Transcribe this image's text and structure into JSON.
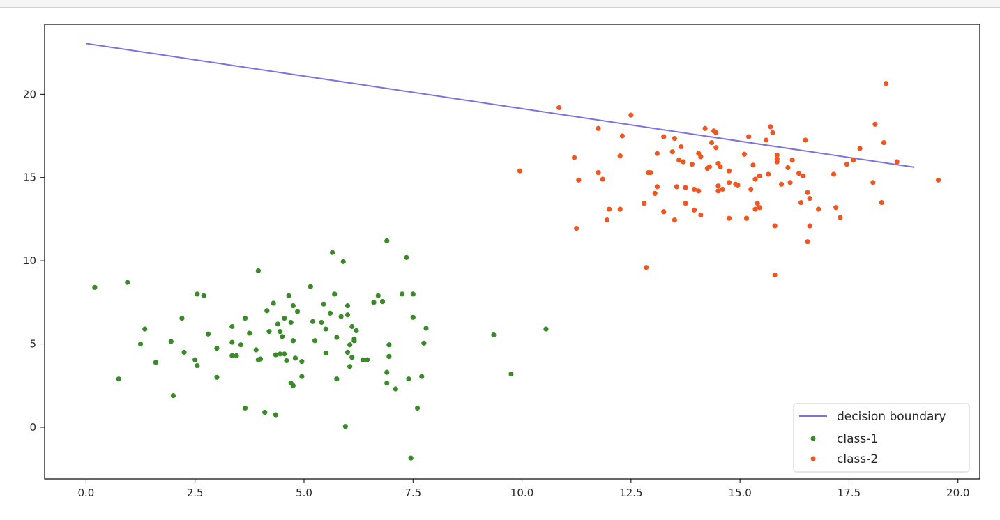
{
  "chart_data": {
    "type": "scatter",
    "title": "",
    "xlabel": "",
    "ylabel": "",
    "xlim": [
      -0.95,
      20.5
    ],
    "ylim": [
      -3.1,
      24.2
    ],
    "xticks": [
      0.0,
      2.5,
      5.0,
      7.5,
      10.0,
      12.5,
      15.0,
      17.5,
      20.0
    ],
    "xtick_labels": [
      "0.0",
      "2.5",
      "5.0",
      "7.5",
      "10.0",
      "12.5",
      "15.0",
      "17.5",
      "20.0"
    ],
    "yticks": [
      0,
      5,
      10,
      15,
      20
    ],
    "ytick_labels": [
      "0",
      "5",
      "10",
      "15",
      "20"
    ],
    "grid": false,
    "legend_position": "bottom-right",
    "line": {
      "name": "decision boundary",
      "color": "#7b72e0",
      "x": [
        0.0,
        19.0
      ],
      "y": [
        23.05,
        15.62
      ]
    },
    "series": [
      {
        "name": "class-1",
        "color": "#3a8a2a",
        "points": [
          [
            0.2,
            8.4
          ],
          [
            0.95,
            8.7
          ],
          [
            0.75,
            2.9
          ],
          [
            1.25,
            5.0
          ],
          [
            1.35,
            5.9
          ],
          [
            1.6,
            3.9
          ],
          [
            1.95,
            5.15
          ],
          [
            2.0,
            1.9
          ],
          [
            2.2,
            6.55
          ],
          [
            2.25,
            4.5
          ],
          [
            2.5,
            4.05
          ],
          [
            2.55,
            8.0
          ],
          [
            2.55,
            3.7
          ],
          [
            2.7,
            7.9
          ],
          [
            2.8,
            5.6
          ],
          [
            3.0,
            4.75
          ],
          [
            3.0,
            3.0
          ],
          [
            3.35,
            6.05
          ],
          [
            3.35,
            5.1
          ],
          [
            3.35,
            4.3
          ],
          [
            3.45,
            4.3
          ],
          [
            3.55,
            4.95
          ],
          [
            3.65,
            6.55
          ],
          [
            3.65,
            1.15
          ],
          [
            3.75,
            5.65
          ],
          [
            3.9,
            4.65
          ],
          [
            3.95,
            9.4
          ],
          [
            3.95,
            4.05
          ],
          [
            4.0,
            4.1
          ],
          [
            4.1,
            0.9
          ],
          [
            4.15,
            7.0
          ],
          [
            4.2,
            5.75
          ],
          [
            4.3,
            7.45
          ],
          [
            4.35,
            4.35
          ],
          [
            4.35,
            0.75
          ],
          [
            4.4,
            6.2
          ],
          [
            4.45,
            5.75
          ],
          [
            4.45,
            4.4
          ],
          [
            4.5,
            5.45
          ],
          [
            4.55,
            6.55
          ],
          [
            4.55,
            4.4
          ],
          [
            4.6,
            4.0
          ],
          [
            4.65,
            7.9
          ],
          [
            4.7,
            6.3
          ],
          [
            4.7,
            2.65
          ],
          [
            4.75,
            2.5
          ],
          [
            4.75,
            5.2
          ],
          [
            4.75,
            7.3
          ],
          [
            4.8,
            4.15
          ],
          [
            4.85,
            6.95
          ],
          [
            4.95,
            3.05
          ],
          [
            4.95,
            3.95
          ],
          [
            5.15,
            8.45
          ],
          [
            5.2,
            6.35
          ],
          [
            5.25,
            5.2
          ],
          [
            5.4,
            6.3
          ],
          [
            5.45,
            7.4
          ],
          [
            5.5,
            4.45
          ],
          [
            5.5,
            5.9
          ],
          [
            5.6,
            6.85
          ],
          [
            5.65,
            10.5
          ],
          [
            5.7,
            8.0
          ],
          [
            5.75,
            5.4
          ],
          [
            5.75,
            2.9
          ],
          [
            5.85,
            6.65
          ],
          [
            5.9,
            9.95
          ],
          [
            5.95,
            0.05
          ],
          [
            6.0,
            4.5
          ],
          [
            6.0,
            7.3
          ],
          [
            6.0,
            6.75
          ],
          [
            6.05,
            3.65
          ],
          [
            6.05,
            4.95
          ],
          [
            6.1,
            4.2
          ],
          [
            6.1,
            6.05
          ],
          [
            6.15,
            5.2
          ],
          [
            6.15,
            5.3
          ],
          [
            6.2,
            5.8
          ],
          [
            6.35,
            4.05
          ],
          [
            6.45,
            4.05
          ],
          [
            6.6,
            7.5
          ],
          [
            6.7,
            7.9
          ],
          [
            6.8,
            7.55
          ],
          [
            6.9,
            11.2
          ],
          [
            6.9,
            3.3
          ],
          [
            6.9,
            2.65
          ],
          [
            6.95,
            4.95
          ],
          [
            6.95,
            4.25
          ],
          [
            7.1,
            2.3
          ],
          [
            7.25,
            8.0
          ],
          [
            7.35,
            10.2
          ],
          [
            7.4,
            2.9
          ],
          [
            7.45,
            -1.85
          ],
          [
            7.5,
            8.0
          ],
          [
            7.5,
            6.6
          ],
          [
            7.6,
            1.15
          ],
          [
            7.7,
            3.05
          ],
          [
            7.75,
            5.05
          ],
          [
            7.8,
            5.95
          ],
          [
            9.35,
            5.55
          ],
          [
            9.75,
            3.2
          ],
          [
            10.55,
            5.9
          ]
        ]
      },
      {
        "name": "class-2",
        "color": "#ee5722",
        "points": [
          [
            9.95,
            15.4
          ],
          [
            10.85,
            19.2
          ],
          [
            11.2,
            16.2
          ],
          [
            11.25,
            11.95
          ],
          [
            11.3,
            14.85
          ],
          [
            11.75,
            17.95
          ],
          [
            11.75,
            15.3
          ],
          [
            11.85,
            14.9
          ],
          [
            11.95,
            12.45
          ],
          [
            12.0,
            13.1
          ],
          [
            12.25,
            13.1
          ],
          [
            12.25,
            16.3
          ],
          [
            12.3,
            17.5
          ],
          [
            12.5,
            18.75
          ],
          [
            12.8,
            13.45
          ],
          [
            12.85,
            9.6
          ],
          [
            12.9,
            15.3
          ],
          [
            12.95,
            15.3
          ],
          [
            13.05,
            14.05
          ],
          [
            13.1,
            16.45
          ],
          [
            13.1,
            14.45
          ],
          [
            13.25,
            17.45
          ],
          [
            13.25,
            12.95
          ],
          [
            13.45,
            16.55
          ],
          [
            13.5,
            17.35
          ],
          [
            13.5,
            12.45
          ],
          [
            13.55,
            14.45
          ],
          [
            13.6,
            16.05
          ],
          [
            13.65,
            16.85
          ],
          [
            13.7,
            15.95
          ],
          [
            13.75,
            14.4
          ],
          [
            13.75,
            13.45
          ],
          [
            13.9,
            15.8
          ],
          [
            13.95,
            13.05
          ],
          [
            13.95,
            14.3
          ],
          [
            14.05,
            14.2
          ],
          [
            14.05,
            16.45
          ],
          [
            14.1,
            16.25
          ],
          [
            14.1,
            12.75
          ],
          [
            14.2,
            17.95
          ],
          [
            14.25,
            15.55
          ],
          [
            14.3,
            15.65
          ],
          [
            14.35,
            17.1
          ],
          [
            14.4,
            17.8
          ],
          [
            14.45,
            17.7
          ],
          [
            14.45,
            16.8
          ],
          [
            14.5,
            15.85
          ],
          [
            14.5,
            14.5
          ],
          [
            14.5,
            14.2
          ],
          [
            14.55,
            15.65
          ],
          [
            14.6,
            14.3
          ],
          [
            14.75,
            12.55
          ],
          [
            14.75,
            15.4
          ],
          [
            14.75,
            14.7
          ],
          [
            14.9,
            14.6
          ],
          [
            14.95,
            14.55
          ],
          [
            15.1,
            16.4
          ],
          [
            15.15,
            12.55
          ],
          [
            15.2,
            17.45
          ],
          [
            15.25,
            14.3
          ],
          [
            15.3,
            15.75
          ],
          [
            15.35,
            14.9
          ],
          [
            15.35,
            13.1
          ],
          [
            15.4,
            13.45
          ],
          [
            15.45,
            13.2
          ],
          [
            15.45,
            15.1
          ],
          [
            15.6,
            17.25
          ],
          [
            15.65,
            15.2
          ],
          [
            15.7,
            18.05
          ],
          [
            15.75,
            17.7
          ],
          [
            15.8,
            12.1
          ],
          [
            15.8,
            9.15
          ],
          [
            15.85,
            15.95
          ],
          [
            15.85,
            16.35
          ],
          [
            15.85,
            16.1
          ],
          [
            15.95,
            14.6
          ],
          [
            16.1,
            15.6
          ],
          [
            16.15,
            14.7
          ],
          [
            16.2,
            16.05
          ],
          [
            16.35,
            15.25
          ],
          [
            16.4,
            13.5
          ],
          [
            16.45,
            15.1
          ],
          [
            16.5,
            17.25
          ],
          [
            16.55,
            14.1
          ],
          [
            16.55,
            11.15
          ],
          [
            16.6,
            13.75
          ],
          [
            16.6,
            12.1
          ],
          [
            16.8,
            13.1
          ],
          [
            17.15,
            15.2
          ],
          [
            17.2,
            13.2
          ],
          [
            17.3,
            12.6
          ],
          [
            17.45,
            15.8
          ],
          [
            17.6,
            16.05
          ],
          [
            17.75,
            16.75
          ],
          [
            18.05,
            14.7
          ],
          [
            18.1,
            18.2
          ],
          [
            18.25,
            13.5
          ],
          [
            18.3,
            17.1
          ],
          [
            18.35,
            20.65
          ],
          [
            18.6,
            15.95
          ],
          [
            19.55,
            14.85
          ]
        ]
      }
    ]
  }
}
